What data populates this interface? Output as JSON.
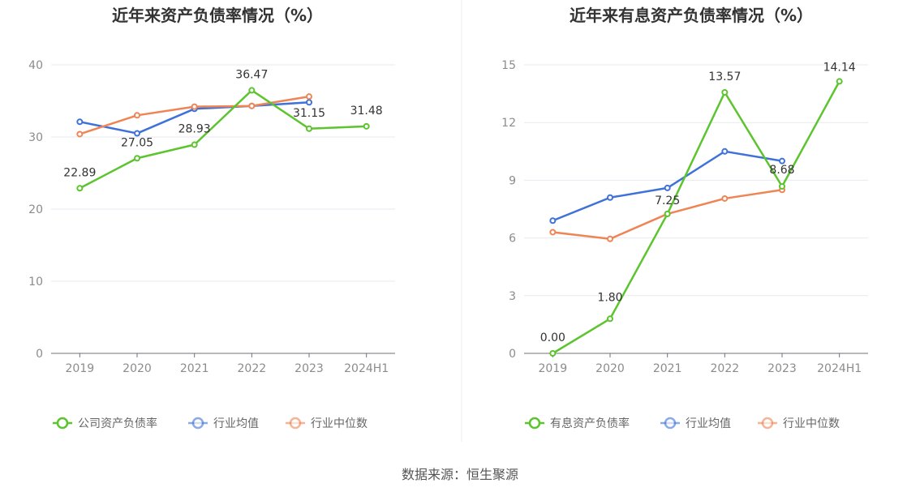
{
  "source": "数据来源：恒生聚源",
  "colors": {
    "company": "#5cc42e",
    "industry_avg": "#3f72d9",
    "industry_median": "#ef8455",
    "grid": "#e6e9f0",
    "axis": "#6e7079"
  },
  "chart_data": [
    {
      "type": "line",
      "title": "近年来资产负债率情况（%）",
      "categories": [
        "2019",
        "2020",
        "2021",
        "2022",
        "2023",
        "2024H1"
      ],
      "ylim": [
        0,
        40
      ],
      "yticks": [
        0,
        10,
        20,
        30,
        40
      ],
      "series": [
        {
          "name": "公司资产负债率",
          "key": "company",
          "values": [
            22.89,
            27.05,
            28.93,
            36.47,
            31.15,
            31.48
          ],
          "labels": true
        },
        {
          "name": "行业均值",
          "key": "industry_avg",
          "values": [
            32.1,
            30.5,
            33.9,
            34.3,
            34.8,
            null
          ],
          "labels": false
        },
        {
          "name": "行业中位数",
          "key": "industry_median",
          "values": [
            30.4,
            33.0,
            34.2,
            34.3,
            35.6,
            null
          ],
          "labels": false
        }
      ]
    },
    {
      "type": "line",
      "title": "近年来有息资产负债率情况（%）",
      "categories": [
        "2019",
        "2020",
        "2021",
        "2022",
        "2023",
        "2024H1"
      ],
      "ylim": [
        0,
        15
      ],
      "yticks": [
        0,
        3,
        6,
        9,
        12,
        15
      ],
      "series": [
        {
          "name": "有息资产负债率",
          "key": "company",
          "values": [
            0.0,
            1.8,
            7.25,
            13.57,
            8.68,
            14.14
          ],
          "labels": true
        },
        {
          "name": "行业均值",
          "key": "industry_avg",
          "values": [
            6.9,
            8.1,
            8.6,
            10.5,
            10.0,
            null
          ],
          "labels": false
        },
        {
          "name": "行业中位数",
          "key": "industry_median",
          "values": [
            6.3,
            5.95,
            7.25,
            8.05,
            8.5,
            null
          ],
          "labels": false
        }
      ]
    }
  ]
}
